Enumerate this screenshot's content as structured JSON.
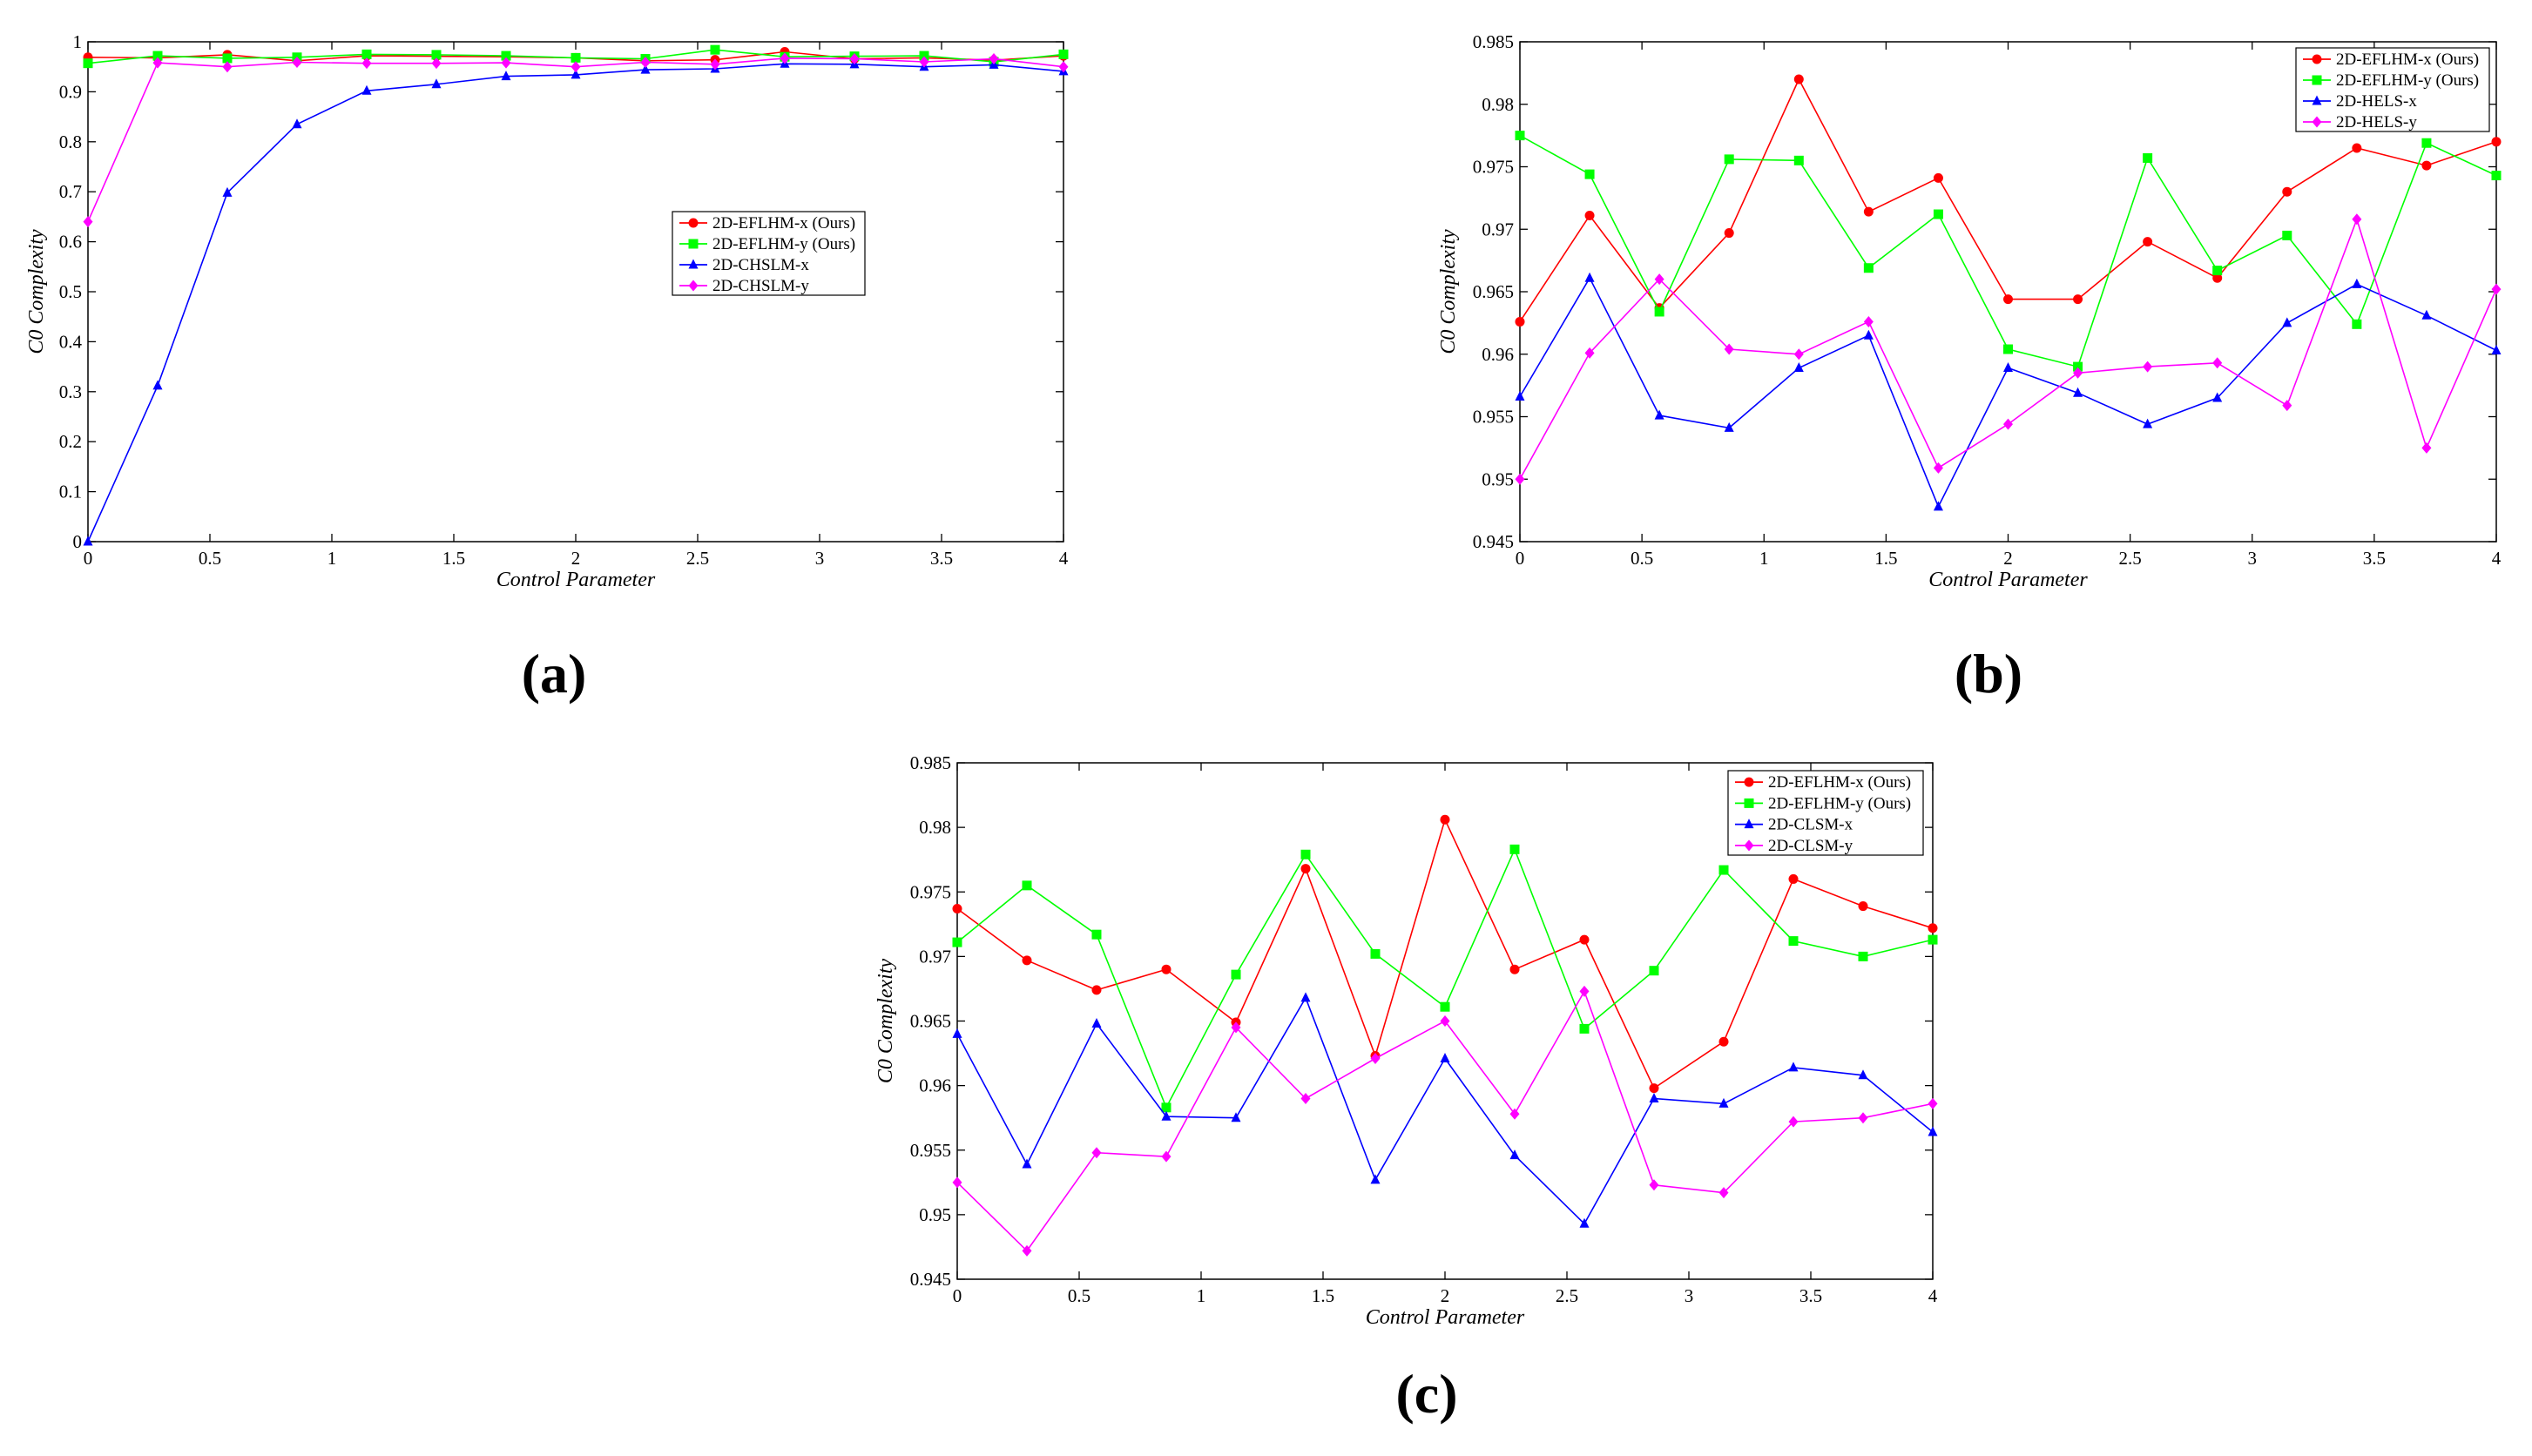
{
  "figure": {
    "panel_labels": [
      "(a)",
      "(b)",
      "(c)"
    ]
  },
  "chart_data": [
    {
      "type": "line",
      "panel": "(a)",
      "xlabel": "Control Parameter",
      "ylabel": "C0 Complexity",
      "xlim": [
        0,
        4
      ],
      "ylim": [
        0,
        1
      ],
      "xticks": [
        0,
        0.5,
        1,
        1.5,
        2,
        2.5,
        3,
        3.5,
        4
      ],
      "xtick_labels": [
        "0",
        "0.5",
        "1",
        "1.5",
        "2",
        "2.5",
        "3",
        "3.5",
        "4"
      ],
      "yticks": [
        0,
        0.1,
        0.2,
        0.3,
        0.4,
        0.5,
        0.6,
        0.7,
        0.8,
        0.9,
        1
      ],
      "ytick_labels": [
        "0",
        "0.1",
        "0.2",
        "0.3",
        "0.4",
        "0.5",
        "0.6",
        "0.7",
        "0.8",
        "0.9",
        "1"
      ],
      "legend_position": "center-right",
      "x": [
        0,
        0.2857,
        0.5714,
        0.8571,
        1.1429,
        1.4286,
        1.7143,
        2,
        2.2857,
        2.5714,
        2.8571,
        3.1429,
        3.4286,
        3.7143,
        4
      ],
      "series": [
        {
          "name": "2D-EFLHM-x (Ours)",
          "color": "#ff0000",
          "marker": "circle",
          "values": [
            0.969,
            0.968,
            0.974,
            0.962,
            0.972,
            0.971,
            0.97,
            0.968,
            0.962,
            0.964,
            0.98,
            0.966,
            0.968,
            0.963,
            0.972
          ]
        },
        {
          "name": "2D-EFLHM-y (Ours)",
          "color": "#00ff00",
          "marker": "square",
          "values": [
            0.957,
            0.972,
            0.967,
            0.969,
            0.975,
            0.974,
            0.972,
            0.968,
            0.966,
            0.984,
            0.97,
            0.971,
            0.972,
            0.96,
            0.975
          ]
        },
        {
          "name": "2D-CHSLM-x",
          "color": "#0000ff",
          "marker": "triangle",
          "values": [
            0.0,
            0.312,
            0.698,
            0.835,
            0.902,
            0.915,
            0.931,
            0.934,
            0.944,
            0.946,
            0.956,
            0.955,
            0.95,
            0.954,
            0.941
          ]
        },
        {
          "name": "2D-CHSLM-y",
          "color": "#ff00ff",
          "marker": "diamond",
          "values": [
            0.64,
            0.958,
            0.95,
            0.959,
            0.957,
            0.957,
            0.958,
            0.95,
            0.959,
            0.955,
            0.967,
            0.966,
            0.96,
            0.966,
            0.95
          ]
        }
      ]
    },
    {
      "type": "line",
      "panel": "(b)",
      "xlabel": "Control Parameter",
      "ylabel": "C0 Complexity",
      "xlim": [
        0,
        4
      ],
      "ylim": [
        0.945,
        0.985
      ],
      "xticks": [
        0,
        0.5,
        1,
        1.5,
        2,
        2.5,
        3,
        3.5,
        4
      ],
      "xtick_labels": [
        "0",
        "0.5",
        "1",
        "1.5",
        "2",
        "2.5",
        "3",
        "3.5",
        "4"
      ],
      "yticks": [
        0.945,
        0.95,
        0.955,
        0.96,
        0.965,
        0.97,
        0.975,
        0.98,
        0.985
      ],
      "ytick_labels": [
        "0.945",
        "0.95",
        "0.955",
        "0.96",
        "0.965",
        "0.97",
        "0.975",
        "0.98",
        "0.985"
      ],
      "legend_position": "top-right",
      "x": [
        0,
        0.2857,
        0.5714,
        0.8571,
        1.1429,
        1.4286,
        1.7143,
        2,
        2.2857,
        2.5714,
        2.8571,
        3.1429,
        3.4286,
        3.7143,
        4
      ],
      "series": [
        {
          "name": "2D-EFLHM-x (Ours)",
          "color": "#ff0000",
          "marker": "circle",
          "values": [
            0.9626,
            0.9711,
            0.9637,
            0.9697,
            0.982,
            0.9714,
            0.9741,
            0.9644,
            0.9644,
            0.969,
            0.9661,
            0.973,
            0.9765,
            0.9751,
            0.977
          ]
        },
        {
          "name": "2D-EFLHM-y (Ours)",
          "color": "#00ff00",
          "marker": "square",
          "values": [
            0.9775,
            0.9744,
            0.9634,
            0.9756,
            0.9755,
            0.9669,
            0.9712,
            0.9604,
            0.959,
            0.9757,
            0.9667,
            0.9695,
            0.9624,
            0.9769,
            0.9743
          ]
        },
        {
          "name": "2D-HELS-x",
          "color": "#0000ff",
          "marker": "triangle",
          "values": [
            0.9566,
            0.9661,
            0.9551,
            0.9541,
            0.9589,
            0.9615,
            0.9478,
            0.9589,
            0.9569,
            0.9544,
            0.9565,
            0.9625,
            0.9656,
            0.9631,
            0.9603
          ]
        },
        {
          "name": "2D-HELS-y",
          "color": "#ff00ff",
          "marker": "diamond",
          "values": [
            0.95,
            0.9601,
            0.966,
            0.9604,
            0.96,
            0.9626,
            0.9509,
            0.9544,
            0.9585,
            0.959,
            0.9593,
            0.9559,
            0.9708,
            0.9525,
            0.9652
          ]
        }
      ]
    },
    {
      "type": "line",
      "panel": "(c)",
      "xlabel": "Control Parameter",
      "ylabel": "C0 Complexity",
      "xlim": [
        0,
        4
      ],
      "ylim": [
        0.945,
        0.985
      ],
      "xticks": [
        0,
        0.5,
        1,
        1.5,
        2,
        2.5,
        3,
        3.5,
        4
      ],
      "xtick_labels": [
        "0",
        "0.5",
        "1",
        "1.5",
        "2",
        "2.5",
        "3",
        "3.5",
        "4"
      ],
      "yticks": [
        0.945,
        0.95,
        0.955,
        0.96,
        0.965,
        0.97,
        0.975,
        0.98,
        0.985
      ],
      "ytick_labels": [
        "0.945",
        "0.95",
        "0.955",
        "0.96",
        "0.965",
        "0.97",
        "0.975",
        "0.98",
        "0.985"
      ],
      "legend_position": "top-right",
      "x": [
        0,
        0.2857,
        0.5714,
        0.8571,
        1.1429,
        1.4286,
        1.7143,
        2,
        2.2857,
        2.5714,
        2.8571,
        3.1429,
        3.4286,
        3.7143,
        4
      ],
      "series": [
        {
          "name": "2D-EFLHM-x (Ours)",
          "color": "#ff0000",
          "marker": "circle",
          "values": [
            0.9737,
            0.9697,
            0.9674,
            0.969,
            0.9649,
            0.9768,
            0.9623,
            0.9806,
            0.969,
            0.9713,
            0.9598,
            0.9634,
            0.976,
            0.9739,
            0.9722
          ]
        },
        {
          "name": "2D-EFLHM-y (Ours)",
          "color": "#00ff00",
          "marker": "square",
          "values": [
            0.9711,
            0.9755,
            0.9717,
            0.9583,
            0.9686,
            0.9779,
            0.9702,
            0.9661,
            0.9783,
            0.9644,
            0.9689,
            0.9767,
            0.9712,
            0.97,
            0.9713
          ]
        },
        {
          "name": "2D-CLSM-x",
          "color": "#0000ff",
          "marker": "triangle",
          "values": [
            0.964,
            0.9539,
            0.9648,
            0.9576,
            0.9575,
            0.9668,
            0.9527,
            0.9621,
            0.9546,
            0.9493,
            0.959,
            0.9586,
            0.9614,
            0.9608,
            0.9564
          ]
        },
        {
          "name": "2D-CLSM-y",
          "color": "#ff00ff",
          "marker": "diamond",
          "values": [
            0.9525,
            0.9472,
            0.9548,
            0.9545,
            0.9645,
            0.959,
            0.9621,
            0.965,
            0.9578,
            0.9673,
            0.9523,
            0.9517,
            0.9572,
            0.9575,
            0.9586
          ]
        }
      ]
    }
  ]
}
